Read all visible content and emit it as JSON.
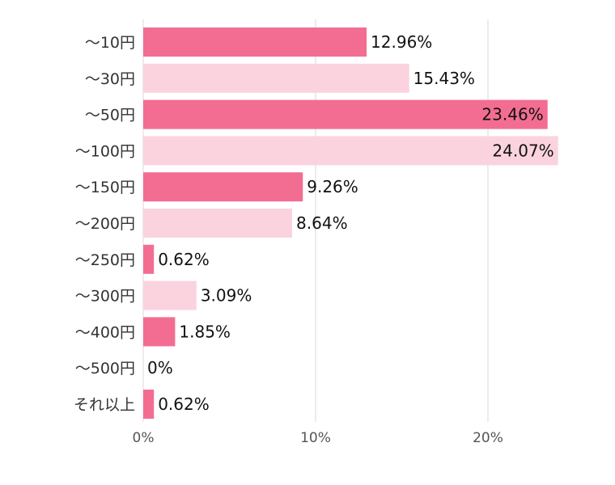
{
  "chart_data": {
    "type": "bar",
    "orientation": "horizontal",
    "categories": [
      "～10円",
      "～30円",
      "～50円",
      "～100円",
      "～150円",
      "～200円",
      "～250円",
      "～300円",
      "～400円",
      "～500円",
      "それ以上"
    ],
    "values": [
      12.96,
      15.43,
      23.46,
      24.07,
      9.26,
      8.64,
      0.62,
      3.09,
      1.85,
      0,
      0.62
    ],
    "data_labels": [
      "12.96%",
      "15.43%",
      "23.46%",
      "24.07%",
      "9.26%",
      "8.64%",
      "0.62%",
      "3.09%",
      "1.85%",
      "0%",
      "0.62%"
    ],
    "x_ticks": [
      {
        "value": 0,
        "label": "0%"
      },
      {
        "value": 10,
        "label": "10%"
      },
      {
        "value": 20,
        "label": "20%"
      }
    ],
    "xlim": [
      0,
      25
    ],
    "grid": true,
    "colors": {
      "dark": "#f36d92",
      "light": "#fbd3df",
      "grid": "#d9d9d9"
    },
    "title": "",
    "xlabel": "",
    "ylabel": ""
  }
}
